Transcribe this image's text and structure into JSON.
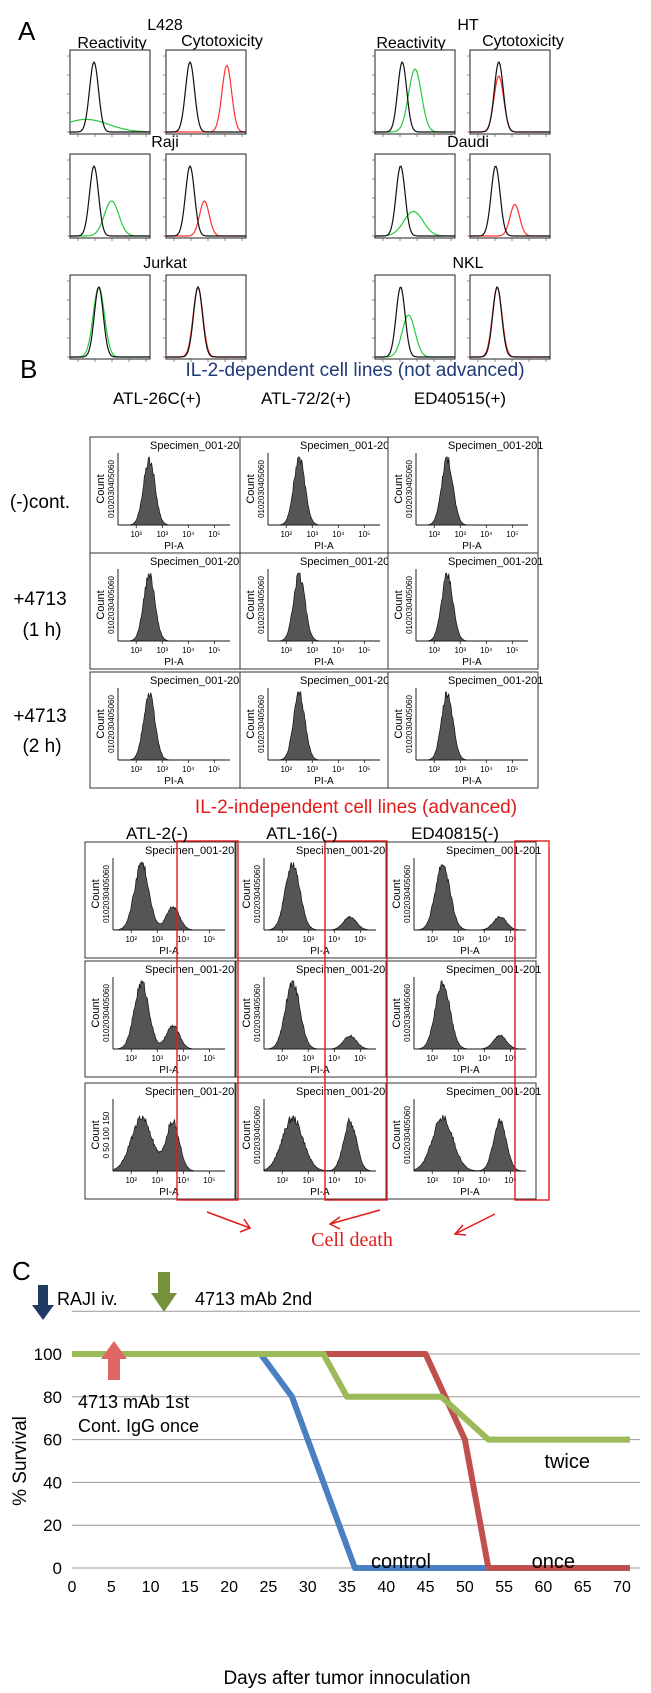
{
  "panel_a": {
    "letter": "A",
    "reactivity_label": "Reactivity",
    "cytotoxicity_label": "Cytotoxicity",
    "cell_lines": [
      {
        "name": "L428",
        "reactivity": {
          "black": 2.0,
          "colored": 1.5,
          "colored_width": 1.4,
          "colored_height": 0.18
        },
        "cytotoxicity": {
          "black": 2.0,
          "colored": 4.3,
          "colored_height": 0.95
        }
      },
      {
        "name": "HT",
        "reactivity": {
          "black": 2.2,
          "colored": 3.0,
          "colored_width": 0.4,
          "colored_height": 0.9
        },
        "cytotoxicity": {
          "black": 2.3,
          "colored": 2.3,
          "colored_height": 0.8
        }
      },
      {
        "name": "Raji",
        "reactivity": {
          "black": 2.0,
          "colored": 3.1,
          "colored_width": 0.45,
          "colored_height": 0.5
        },
        "cytotoxicity": {
          "black": 2.0,
          "colored": 2.9,
          "colored_height": 0.5
        }
      },
      {
        "name": "Daudi",
        "reactivity": {
          "black": 2.1,
          "colored": 2.9,
          "colored_width": 0.6,
          "colored_height": 0.35
        },
        "cytotoxicity": {
          "black": 2.1,
          "colored": 3.3,
          "colored_height": 0.45
        }
      },
      {
        "name": "Jurkat",
        "reactivity": {
          "black": 2.3,
          "colored": 2.3,
          "colored_width": 0.35,
          "colored_height": 1.0
        },
        "cytotoxicity": {
          "black": 2.5,
          "colored": 2.5,
          "colored_height": 1.0
        }
      },
      {
        "name": "NKL",
        "reactivity": {
          "black": 2.1,
          "colored": 2.6,
          "colored_width": 0.4,
          "colored_height": 0.6
        },
        "cytotoxicity": {
          "black": 2.2,
          "colored": 2.2,
          "colored_height": 1.0
        }
      }
    ]
  },
  "panel_b": {
    "letter": "B",
    "dependent_title": "IL-2-dependent cell lines (not advanced)",
    "independent_title": "IL-2-independent cell lines (advanced)",
    "dependent_columns": [
      "ATL-26C(+)",
      "ATL-72/2(+)",
      "ED40515(+)"
    ],
    "independent_columns": [
      "ATL-2(-)",
      "ATL-16(-)",
      "ED40815(-)"
    ],
    "row_labels": [
      {
        "line1": "(-)cont.",
        "line2": ""
      },
      {
        "line1": "+4713",
        "line2": "(1 h)"
      },
      {
        "line1": "+4713",
        "line2": "(2 h)"
      }
    ],
    "plot_title": "Specimen_001-201",
    "x_axis_label": "PI-A",
    "y_axis_label": "Count",
    "x_ticks": [
      "10²",
      "10³",
      "10⁴",
      "10⁵"
    ],
    "y_tick_text_dependent": "0102030405060",
    "y_tick_text_independent": [
      "0102030405060",
      "0102030405060",
      "0102030405060"
    ],
    "y_tick_text_last_row": "0 50 100 150",
    "cell_death_label": "Cell death",
    "dependent_main_peak": 2.5,
    "independent_second_peak": [
      3.0,
      4.0,
      4.0
    ]
  },
  "panel_c": {
    "letter": "C",
    "annotations": {
      "raji_iv": "RAJI iv.",
      "mab_2nd": "4713 mAb 2nd",
      "mab_1st": "4713 mAb 1st",
      "cont_igg": "Cont. IgG once"
    },
    "series_labels": {
      "control": "control",
      "once": "once",
      "twice": "twice"
    },
    "colors": {
      "control": "#4a7fc1",
      "once": "#c0504d",
      "twice": "#9bbb59",
      "raji_arrow": "#1f3a63",
      "mab1_arrow": "#e06666",
      "mab2_arrow": "#76923c"
    },
    "chart_data": {
      "type": "line",
      "xlabel": "Days after tumor innoculation",
      "ylabel": "% Survival",
      "xlim": [
        0,
        70
      ],
      "ylim": [
        0,
        100
      ],
      "x_ticks": [
        0,
        5,
        10,
        15,
        20,
        25,
        30,
        35,
        40,
        45,
        50,
        55,
        60,
        65,
        70
      ],
      "y_ticks": [
        0,
        20,
        40,
        60,
        80,
        100
      ],
      "grid": true,
      "series": [
        {
          "name": "control",
          "x": [
            0,
            24,
            28,
            36,
            71
          ],
          "y": [
            100,
            100,
            80,
            0,
            0
          ]
        },
        {
          "name": "once",
          "x": [
            0,
            45,
            50,
            53,
            71
          ],
          "y": [
            100,
            100,
            60,
            0,
            0
          ]
        },
        {
          "name": "twice",
          "x": [
            0,
            32,
            35,
            47,
            53,
            71
          ],
          "y": [
            100,
            100,
            80,
            80,
            60,
            60
          ]
        }
      ]
    }
  }
}
